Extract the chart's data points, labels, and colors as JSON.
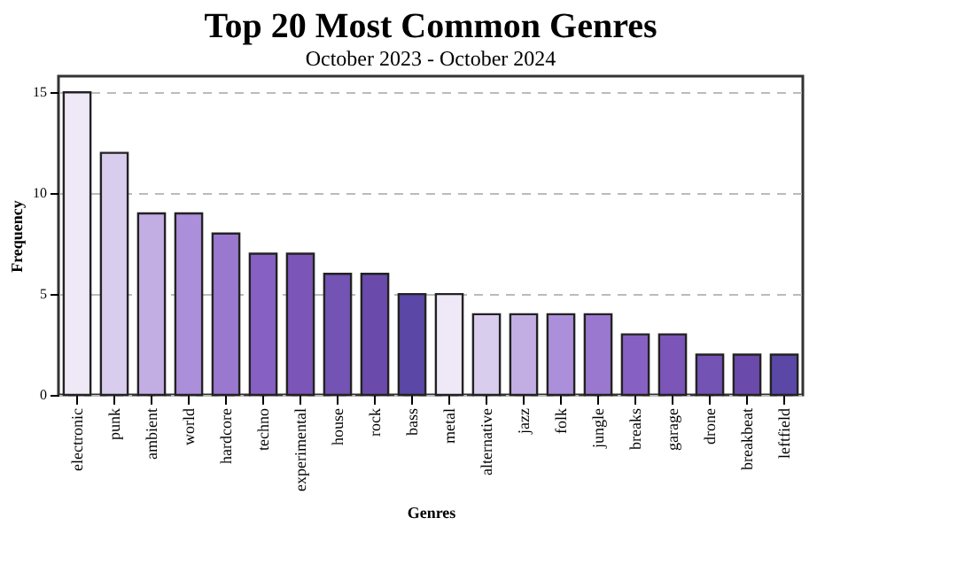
{
  "chart_data": {
    "type": "bar",
    "title": "Top 20 Most Common Genres",
    "subtitle": "October 2023 - October 2024",
    "xlabel": "Genres",
    "ylabel": "Frequency",
    "categories": [
      "electronic",
      "punk",
      "ambient",
      "world",
      "hardcore",
      "techno",
      "experimental",
      "house",
      "rock",
      "bass",
      "metal",
      "alternative",
      "jazz",
      "folk",
      "jungle",
      "breaks",
      "garage",
      "drone",
      "breakbeat",
      "leftfield"
    ],
    "values": [
      15,
      12,
      9,
      9,
      8,
      7,
      7,
      6,
      6,
      5,
      5,
      4,
      4,
      4,
      4,
      3,
      3,
      2,
      2,
      2
    ],
    "colors": [
      "#efe8f6",
      "#d9cdee",
      "#c3aee4",
      "#ac8fda",
      "#9a78cf",
      "#8760c4",
      "#7c55b8",
      "#7353b4",
      "#6a4bab",
      "#5b47a6",
      "#efe8f6",
      "#d9cdee",
      "#c3aee4",
      "#ac8fda",
      "#9a78cf",
      "#8760c4",
      "#7c55b8",
      "#7353b4",
      "#6a4bab",
      "#5b47a6"
    ],
    "ylim": [
      0,
      15.8
    ],
    "yticks": [
      0,
      5,
      10,
      15
    ],
    "grid": "y"
  }
}
